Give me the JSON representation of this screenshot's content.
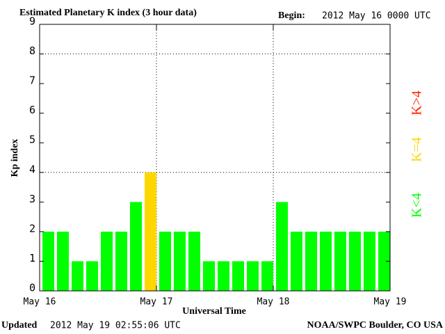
{
  "chart_data": {
    "type": "bar",
    "title": "Estimated Planetary K index (3 hour data)",
    "begin_label": "Begin:",
    "begin": "2012 May 16 0000 UTC",
    "updated_label": "Updated",
    "updated": "2012 May 19 02:55:06 UTC",
    "credit": "NOAA/SWPC Boulder, CO USA",
    "ylabel": "Kp index",
    "xlabel": "Universal Time",
    "categories": [
      null,
      null,
      null,
      null,
      null,
      null,
      null,
      null,
      null,
      null,
      null,
      null,
      null,
      null,
      null,
      null,
      null,
      null,
      null,
      null,
      null,
      null,
      null,
      null
    ],
    "values": [
      2,
      2,
      1,
      1,
      2,
      2,
      3,
      4,
      2,
      2,
      2,
      1,
      1,
      1,
      1,
      1,
      3,
      2,
      2,
      2,
      2,
      2,
      2,
      2
    ],
    "colors": [
      "#00ff00",
      "#00ff00",
      "#00ff00",
      "#00ff00",
      "#00ff00",
      "#00ff00",
      "#00ff00",
      "#ffd700",
      "#00ff00",
      "#00ff00",
      "#00ff00",
      "#00ff00",
      "#00ff00",
      "#00ff00",
      "#00ff00",
      "#00ff00",
      "#00ff00",
      "#00ff00",
      "#00ff00",
      "#00ff00",
      "#00ff00",
      "#00ff00",
      "#00ff00",
      "#00ff00"
    ],
    "legend": [
      {
        "name": "K<4",
        "color": "#00ff00"
      },
      {
        "name": "K=4",
        "color": "#ffd700"
      },
      {
        "name": "K>4",
        "color": "#ff2200"
      }
    ],
    "xlim": [
      0,
      24
    ],
    "xticks": [
      {
        "value": 0,
        "label": "May 16"
      },
      {
        "value": 8,
        "label": "May 17"
      },
      {
        "value": 16,
        "label": "May 18"
      },
      {
        "value": 24,
        "label": "May 19"
      }
    ],
    "ylim": [
      0,
      9
    ],
    "yticks": [
      0,
      1,
      2,
      3,
      4,
      5,
      6,
      7,
      8,
      9
    ],
    "ygrid": [
      4,
      8
    ],
    "xgrid": [
      8,
      16
    ]
  }
}
